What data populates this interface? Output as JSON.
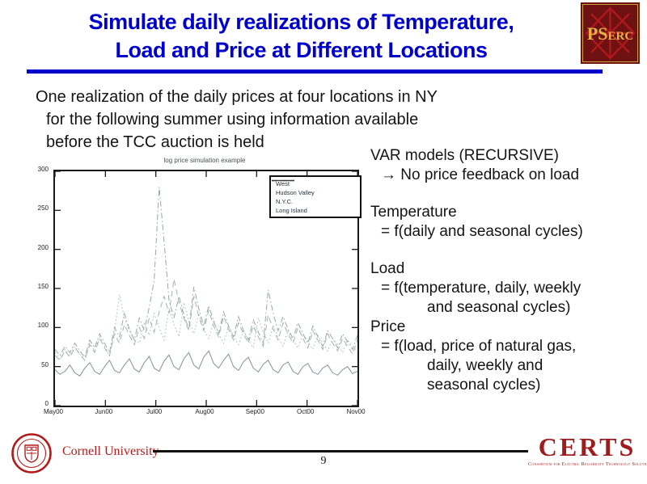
{
  "slide": {
    "title_line1": "Simulate daily realizations of Temperature,",
    "title_line2": "Load and Price at Different Locations",
    "title_color": "#0000cc",
    "body_lines": [
      "One realization of the daily prices at four locations in NY",
      "for the following summer using information available",
      "before the TCC auction is held"
    ],
    "page_number": "9"
  },
  "logos": {
    "pserc": {
      "text_ps": "PS",
      "text_erc": "ERC",
      "bg_color": "#6e1113",
      "star_color": "#b5181c",
      "text_color": "#e4b544",
      "border_color": "#c9a03a"
    },
    "cornell": {
      "label": "Cornell University",
      "color": "#b31b1b"
    },
    "certs": {
      "title": "CERTS",
      "subtitle": "Consortium for Electric Reliability Technology Solutions",
      "color": "#9e1b1e"
    }
  },
  "right_panel": {
    "lines": [
      {
        "text": "VAR models (RECURSIVE)",
        "indent": 0
      },
      {
        "text": "→ No price feedback on load",
        "indent": 1
      },
      {
        "text": "",
        "indent": 0
      },
      {
        "text": "Temperature",
        "indent": 0
      },
      {
        "text": "= f(daily and seasonal cycles)",
        "indent": 1
      },
      {
        "text": "",
        "indent": 0
      },
      {
        "text": "Load",
        "indent": 0
      },
      {
        "text": "= f(temperature, daily, weekly",
        "indent": 1
      },
      {
        "text": "and seasonal cycles)",
        "indent": 2
      },
      {
        "text": "Price",
        "indent": 0
      },
      {
        "text": "= f(load, price of natural gas,",
        "indent": 1
      },
      {
        "text": "daily, weekly and",
        "indent": 2
      },
      {
        "text": "seasonal cycles)",
        "indent": 2
      }
    ]
  },
  "chart": {
    "title": "log price simulation example",
    "yticks": [
      "300",
      "250",
      "200",
      "150",
      "100",
      "50",
      "0"
    ],
    "xticks": [
      "May00",
      "Jun00",
      "Jul00",
      "Aug00",
      "Sep00",
      "Oct00",
      "Nov00"
    ],
    "axis_color": "#1a1a1a",
    "legend": [
      {
        "label": "West",
        "style": "solid",
        "color": "#7e9691"
      },
      {
        "label": "Hudson Valley",
        "style": "dotted",
        "color": "#a9bdb7"
      },
      {
        "label": "N.Y.C.",
        "style": "dashdot",
        "color": "#93aaa4"
      },
      {
        "label": "Long Island",
        "style": "dashed",
        "color": "#9fb5af"
      }
    ],
    "legend_sample_color": "#3a3a3a"
  },
  "chart_data": {
    "type": "line",
    "title": "log price simulation example",
    "xlabel": "",
    "ylabel": "",
    "ylim": [
      0,
      300
    ],
    "xtick_labels": [
      "May00",
      "Jun00",
      "Jul00",
      "Aug00",
      "Sep00",
      "Oct00",
      "Nov00"
    ],
    "x_unit": "days after May 1, 2000 (3-day sampling, values estimated from plot)",
    "x": [
      0,
      3,
      6,
      9,
      12,
      15,
      18,
      21,
      24,
      27,
      30,
      33,
      36,
      39,
      42,
      45,
      48,
      51,
      54,
      57,
      60,
      63,
      66,
      69,
      72,
      75,
      78,
      81,
      84,
      87,
      90,
      93,
      96,
      99,
      102,
      105,
      108,
      111,
      114,
      117,
      120,
      123,
      126,
      129,
      132,
      135,
      138,
      141,
      144,
      147,
      150,
      153,
      156,
      159,
      162,
      165,
      168,
      171,
      174,
      177,
      180,
      183
    ],
    "series": [
      {
        "name": "West",
        "values": [
          46,
          40,
          44,
          52,
          42,
          38,
          48,
          55,
          44,
          40,
          50,
          58,
          45,
          42,
          52,
          60,
          47,
          43,
          55,
          63,
          48,
          44,
          57,
          65,
          50,
          46,
          60,
          68,
          52,
          47,
          62,
          70,
          54,
          48,
          58,
          66,
          50,
          45,
          56,
          62,
          48,
          43,
          53,
          58,
          46,
          42,
          52,
          56,
          44,
          40,
          50,
          54,
          43,
          40,
          48,
          52,
          42,
          39,
          46,
          50,
          41,
          44
        ]
      },
      {
        "name": "Hudson Valley",
        "values": [
          68,
          60,
          72,
          64,
          76,
          66,
          58,
          80,
          70,
          88,
          76,
          64,
          95,
          142,
          112,
          96,
          84,
          80,
          105,
          90,
          118,
          100,
          84,
          125,
          104,
          88,
          132,
          108,
          92,
          118,
          98,
          86,
          108,
          92,
          80,
          102,
          88,
          78,
          96,
          84,
          74,
          112,
          94,
          80,
          102,
          88,
          76,
          96,
          84,
          74,
          92,
          82,
          72,
          90,
          80,
          70,
          86,
          78,
          68,
          84,
          76,
          70
        ]
      },
      {
        "name": "N.Y.C.",
        "values": [
          72,
          64,
          76,
          68,
          80,
          70,
          62,
          84,
          74,
          92,
          80,
          68,
          100,
          88,
          118,
          98,
          84,
          112,
          96,
          126,
          160,
          280,
          210,
          135,
          112,
          140,
          116,
          98,
          152,
          124,
          102,
          128,
          108,
          92,
          120,
          102,
          88,
          114,
          96,
          84,
          110,
          94,
          80,
          148,
          118,
          96,
          114,
          98,
          86,
          106,
          92,
          80,
          102,
          88,
          76,
          96,
          86,
          74,
          92,
          82,
          72,
          90
        ]
      },
      {
        "name": "Long Island",
        "values": [
          64,
          58,
          70,
          62,
          74,
          66,
          58,
          78,
          68,
          86,
          74,
          64,
          92,
          80,
          104,
          90,
          78,
          100,
          86,
          112,
          94,
          120,
          140,
          118,
          162,
          132,
          112,
          96,
          140,
          114,
          96,
          122,
          102,
          88,
          114,
          98,
          84,
          106,
          92,
          80,
          102,
          88,
          76,
          116,
          98,
          84,
          106,
          92,
          80,
          100,
          86,
          74,
          96,
          84,
          72,
          92,
          80,
          70,
          86,
          76,
          66,
          84
        ]
      }
    ]
  }
}
